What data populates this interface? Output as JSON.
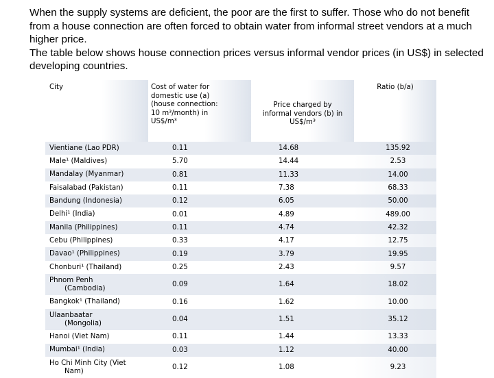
{
  "intro": {
    "line1": "When the supply systems are deficient, the poor are the first to suffer. Those who do not benefit from a house connection are often forced to obtain water from informal street vendors at a much higher price.",
    "line2": "The table below shows house connection prices versus informal vendor prices (in US$) in selected developing countries."
  },
  "table": {
    "headers": {
      "city": "City",
      "house_price": "Cost of water for domestic use (a)(house connection: 10 m³/month) in US$/m³",
      "vendor_price": "Price charged by informal vendors (b) in US$/m³",
      "ratio": "Ratio (b/a)"
    },
    "rows": [
      {
        "city": "Vientiane (Lao PDR)",
        "a": "0.11",
        "b": "14.68",
        "ratio": "135.92"
      },
      {
        "city": "Male¹ (Maldives)",
        "a": "5.70",
        "b": "14.44",
        "ratio": "2.53"
      },
      {
        "city": "Mandalay (Myanmar)",
        "a": "0.81",
        "b": "11.33",
        "ratio": "14.00"
      },
      {
        "city": "Faisalabad (Pakistan)",
        "a": "0.11",
        "b": "7.38",
        "ratio": "68.33"
      },
      {
        "city": "Bandung (Indonesia)",
        "a": "0.12",
        "b": "6.05",
        "ratio": "50.00"
      },
      {
        "city": "Delhi¹ (India)",
        "a": "0.01",
        "b": "4.89",
        "ratio": "489.00"
      },
      {
        "city": "Manila (Philippines)",
        "a": "0.11",
        "b": "4.74",
        "ratio": "42.32"
      },
      {
        "city": "Cebu (Philippines)",
        "a": "0.33",
        "b": "4.17",
        "ratio": "12.75"
      },
      {
        "city": "Davao¹ (Philippines)",
        "a": "0.19",
        "b": "3.79",
        "ratio": "19.95"
      },
      {
        "city": "Chonburi¹ (Thailand)",
        "a": "0.25",
        "b": "2.43",
        "ratio": "9.57"
      },
      {
        "city": "Phnom Penh",
        "city2": "(Cambodia)",
        "a": "0.09",
        "b": "1.64",
        "ratio": "18.02"
      },
      {
        "city": "Bangkok¹ (Thailand)",
        "a": "0.16",
        "b": "1.62",
        "ratio": "10.00"
      },
      {
        "city": "Ulaanbaatar",
        "city2": "(Mongolia)",
        "a": "0.04",
        "b": "1.51",
        "ratio": "35.12"
      },
      {
        "city": "Hanoi (Viet Nam)",
        "a": "0.11",
        "b": "1.44",
        "ratio": "13.33"
      },
      {
        "city": "Mumbai¹ (India)",
        "a": "0.03",
        "b": "1.12",
        "ratio": "40.00"
      },
      {
        "city": "Ho Chi Minh City (Viet",
        "city2": "Nam)",
        "a": "0.12",
        "b": "1.08",
        "ratio": "9.23"
      }
    ]
  }
}
